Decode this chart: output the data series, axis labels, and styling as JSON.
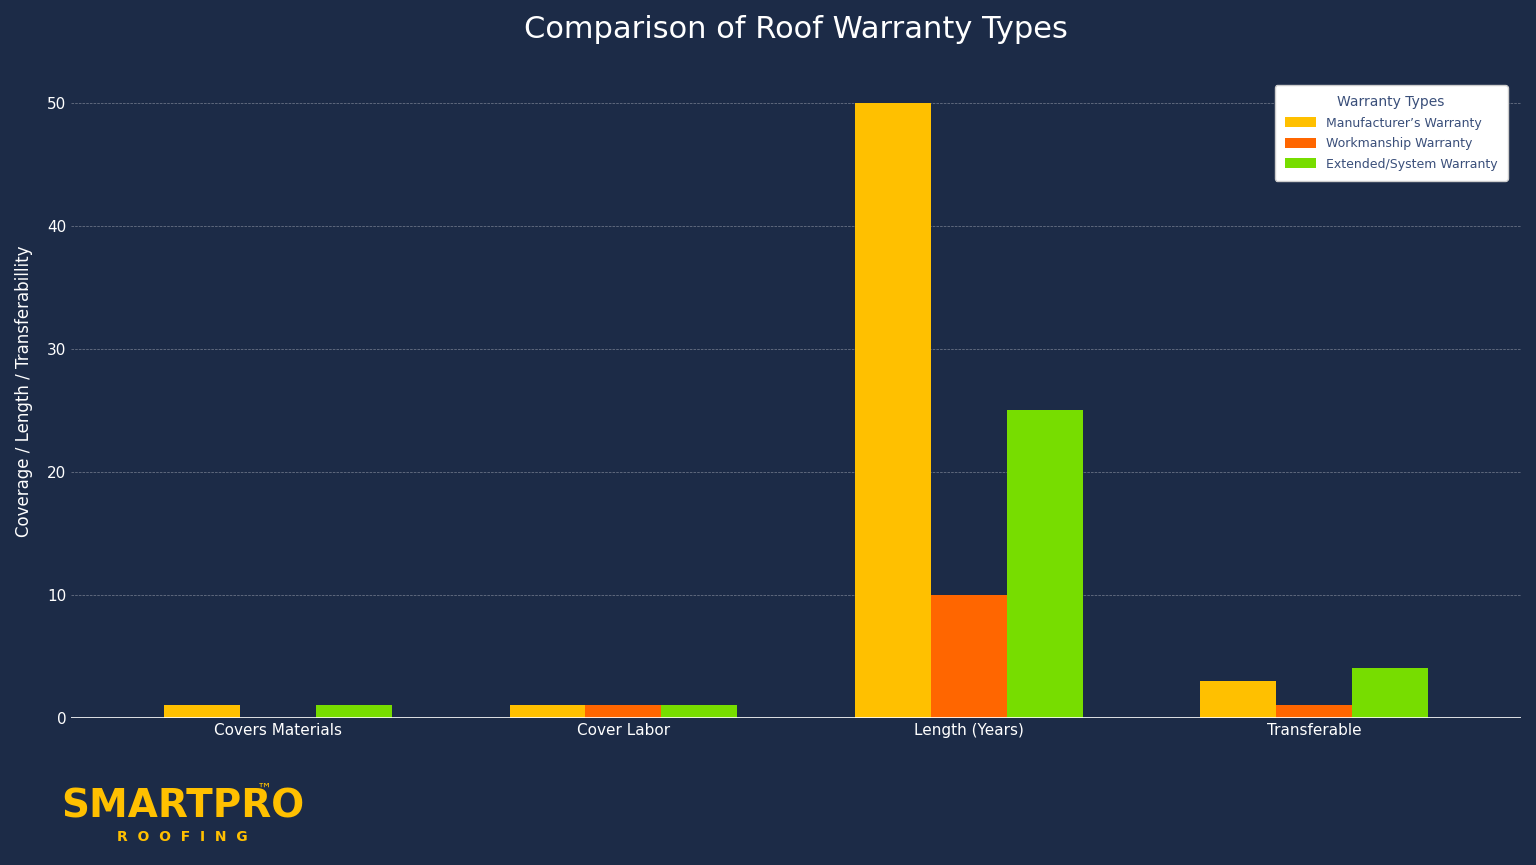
{
  "title": "Comparison of Roof Warranty Types",
  "ylabel": "Coverage / Length / Transferabillity",
  "categories": [
    "Covers Materials",
    "Cover Labor",
    "Length (Years)",
    "Transferable"
  ],
  "series": [
    {
      "name": "Manufacturer’s Warranty",
      "color": "#FFC000",
      "values": [
        1,
        1,
        50,
        3
      ]
    },
    {
      "name": "Workmanship Warranty",
      "color": "#FF6600",
      "values": [
        0,
        1,
        10,
        1
      ]
    },
    {
      "name": "Extended/System Warranty",
      "color": "#77DD00",
      "values": [
        1,
        1,
        25,
        4
      ]
    }
  ],
  "ylim": [
    0,
    53
  ],
  "yticks": [
    0,
    10,
    20,
    30,
    40,
    50
  ],
  "background_color": "#1C2B47",
  "plot_bg_color": "#1C2B47",
  "grid_color": "#FFFFFF",
  "tick_color": "#FFFFFF",
  "title_color": "#FFFFFF",
  "ylabel_color": "#FFFFFF",
  "xtick_color": "#FFFFFF",
  "legend_title": "Warranty Types",
  "legend_title_color": "#3A4F7A",
  "legend_text_color": "#3A4F7A",
  "legend_bg_color": "#FFFFFF",
  "bar_width": 0.22,
  "logo_text_smartpro": "SMARTPRO",
  "logo_text_tm": "™",
  "logo_text_roofing": "ROOFING",
  "logo_color": "#FFC000"
}
